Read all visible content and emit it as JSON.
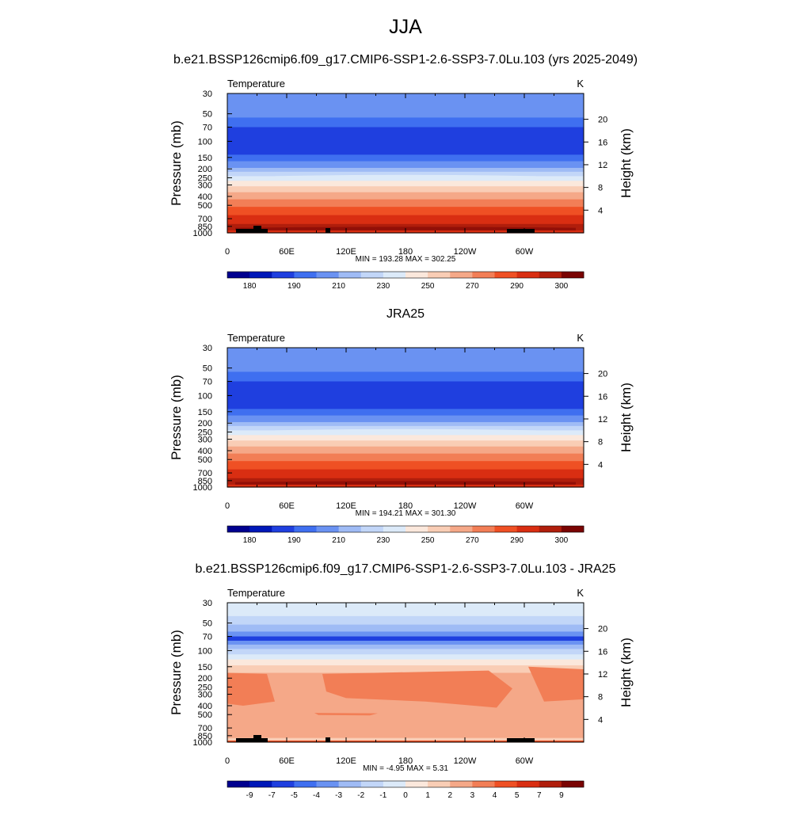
{
  "figure": {
    "title": "JJA",
    "colors": {
      "abs_palette": [
        "#00008f",
        "#0018b8",
        "#1f3fdf",
        "#3f6ff0",
        "#6a92f2",
        "#9fbbf5",
        "#c2d6f8",
        "#dceaf9",
        "#fbe8dc",
        "#f9cdb5",
        "#f5a888",
        "#f27e56",
        "#ef5024",
        "#d92e12",
        "#b01e0c",
        "#7a0403"
      ],
      "diff_palette": [
        "#00008f",
        "#0018b8",
        "#1f3fdf",
        "#3f6ff0",
        "#6a92f2",
        "#9fbbf5",
        "#c2d6f8",
        "#dceaf9",
        "#fbe8dc",
        "#f9cdb5",
        "#f5a888",
        "#f27e56",
        "#ef5024",
        "#d92e12",
        "#b01e0c",
        "#7a0403"
      ]
    }
  },
  "chart_data": [
    {
      "type": "heatmap",
      "title": "b.e21.BSSP126cmip6.f09_g17.CMIP6-SSP1-2.6-SSP3-7.0Lu.103 (yrs 2025-2049)",
      "left_label": "Temperature",
      "right_label": "K",
      "ylabel": "Pressure (mb)",
      "ylabel_right": "Height (km)",
      "x_ticks": [
        "0",
        "60E",
        "120E",
        "180",
        "120W",
        "60W"
      ],
      "y_ticks": [
        "30",
        "50",
        "70",
        "100",
        "150",
        "200",
        "250",
        "300",
        "400",
        "500",
        "700",
        "850",
        "1000"
      ],
      "y_ticks_right": [
        "20",
        "16",
        "12",
        "8",
        "4"
      ],
      "minmax": "MIN = 193.28  MAX = 302.25",
      "colorbar_labels": [
        "180",
        "190",
        "210",
        "230",
        "250",
        "270",
        "290",
        "300"
      ],
      "ylim": [
        1000,
        30
      ],
      "xlim": [
        0,
        360
      ],
      "palette": "abs"
    },
    {
      "type": "heatmap",
      "title": "JRA25",
      "left_label": "Temperature",
      "right_label": "K",
      "ylabel": "Pressure (mb)",
      "ylabel_right": "Height (km)",
      "x_ticks": [
        "0",
        "60E",
        "120E",
        "180",
        "120W",
        "60W"
      ],
      "y_ticks": [
        "30",
        "50",
        "70",
        "100",
        "150",
        "200",
        "250",
        "300",
        "400",
        "500",
        "700",
        "850",
        "1000"
      ],
      "y_ticks_right": [
        "20",
        "16",
        "12",
        "8",
        "4"
      ],
      "minmax": "MIN = 194.21  MAX = 301.30",
      "colorbar_labels": [
        "180",
        "190",
        "210",
        "230",
        "250",
        "270",
        "290",
        "300"
      ],
      "ylim": [
        1000,
        30
      ],
      "xlim": [
        0,
        360
      ],
      "palette": "abs"
    },
    {
      "type": "heatmap",
      "title": "b.e21.BSSP126cmip6.f09_g17.CMIP6-SSP1-2.6-SSP3-7.0Lu.103 - JRA25",
      "left_label": "Temperature",
      "right_label": "K",
      "ylabel": "Pressure (mb)",
      "ylabel_right": "Height (km)",
      "x_ticks": [
        "0",
        "60E",
        "120E",
        "180",
        "120W",
        "60W"
      ],
      "y_ticks": [
        "30",
        "50",
        "70",
        "100",
        "150",
        "200",
        "250",
        "300",
        "400",
        "500",
        "700",
        "850",
        "1000"
      ],
      "y_ticks_right": [
        "20",
        "16",
        "12",
        "8",
        "4"
      ],
      "minmax": "MIN =  -4.95  MAX =   5.31",
      "colorbar_labels": [
        "-9",
        "-7",
        "-5",
        "-4",
        "-3",
        "-2",
        "-1",
        "0",
        "1",
        "2",
        "3",
        "4",
        "5",
        "7",
        "9"
      ],
      "ylim": [
        1000,
        30
      ],
      "xlim": [
        0,
        360
      ],
      "palette": "diff"
    }
  ]
}
